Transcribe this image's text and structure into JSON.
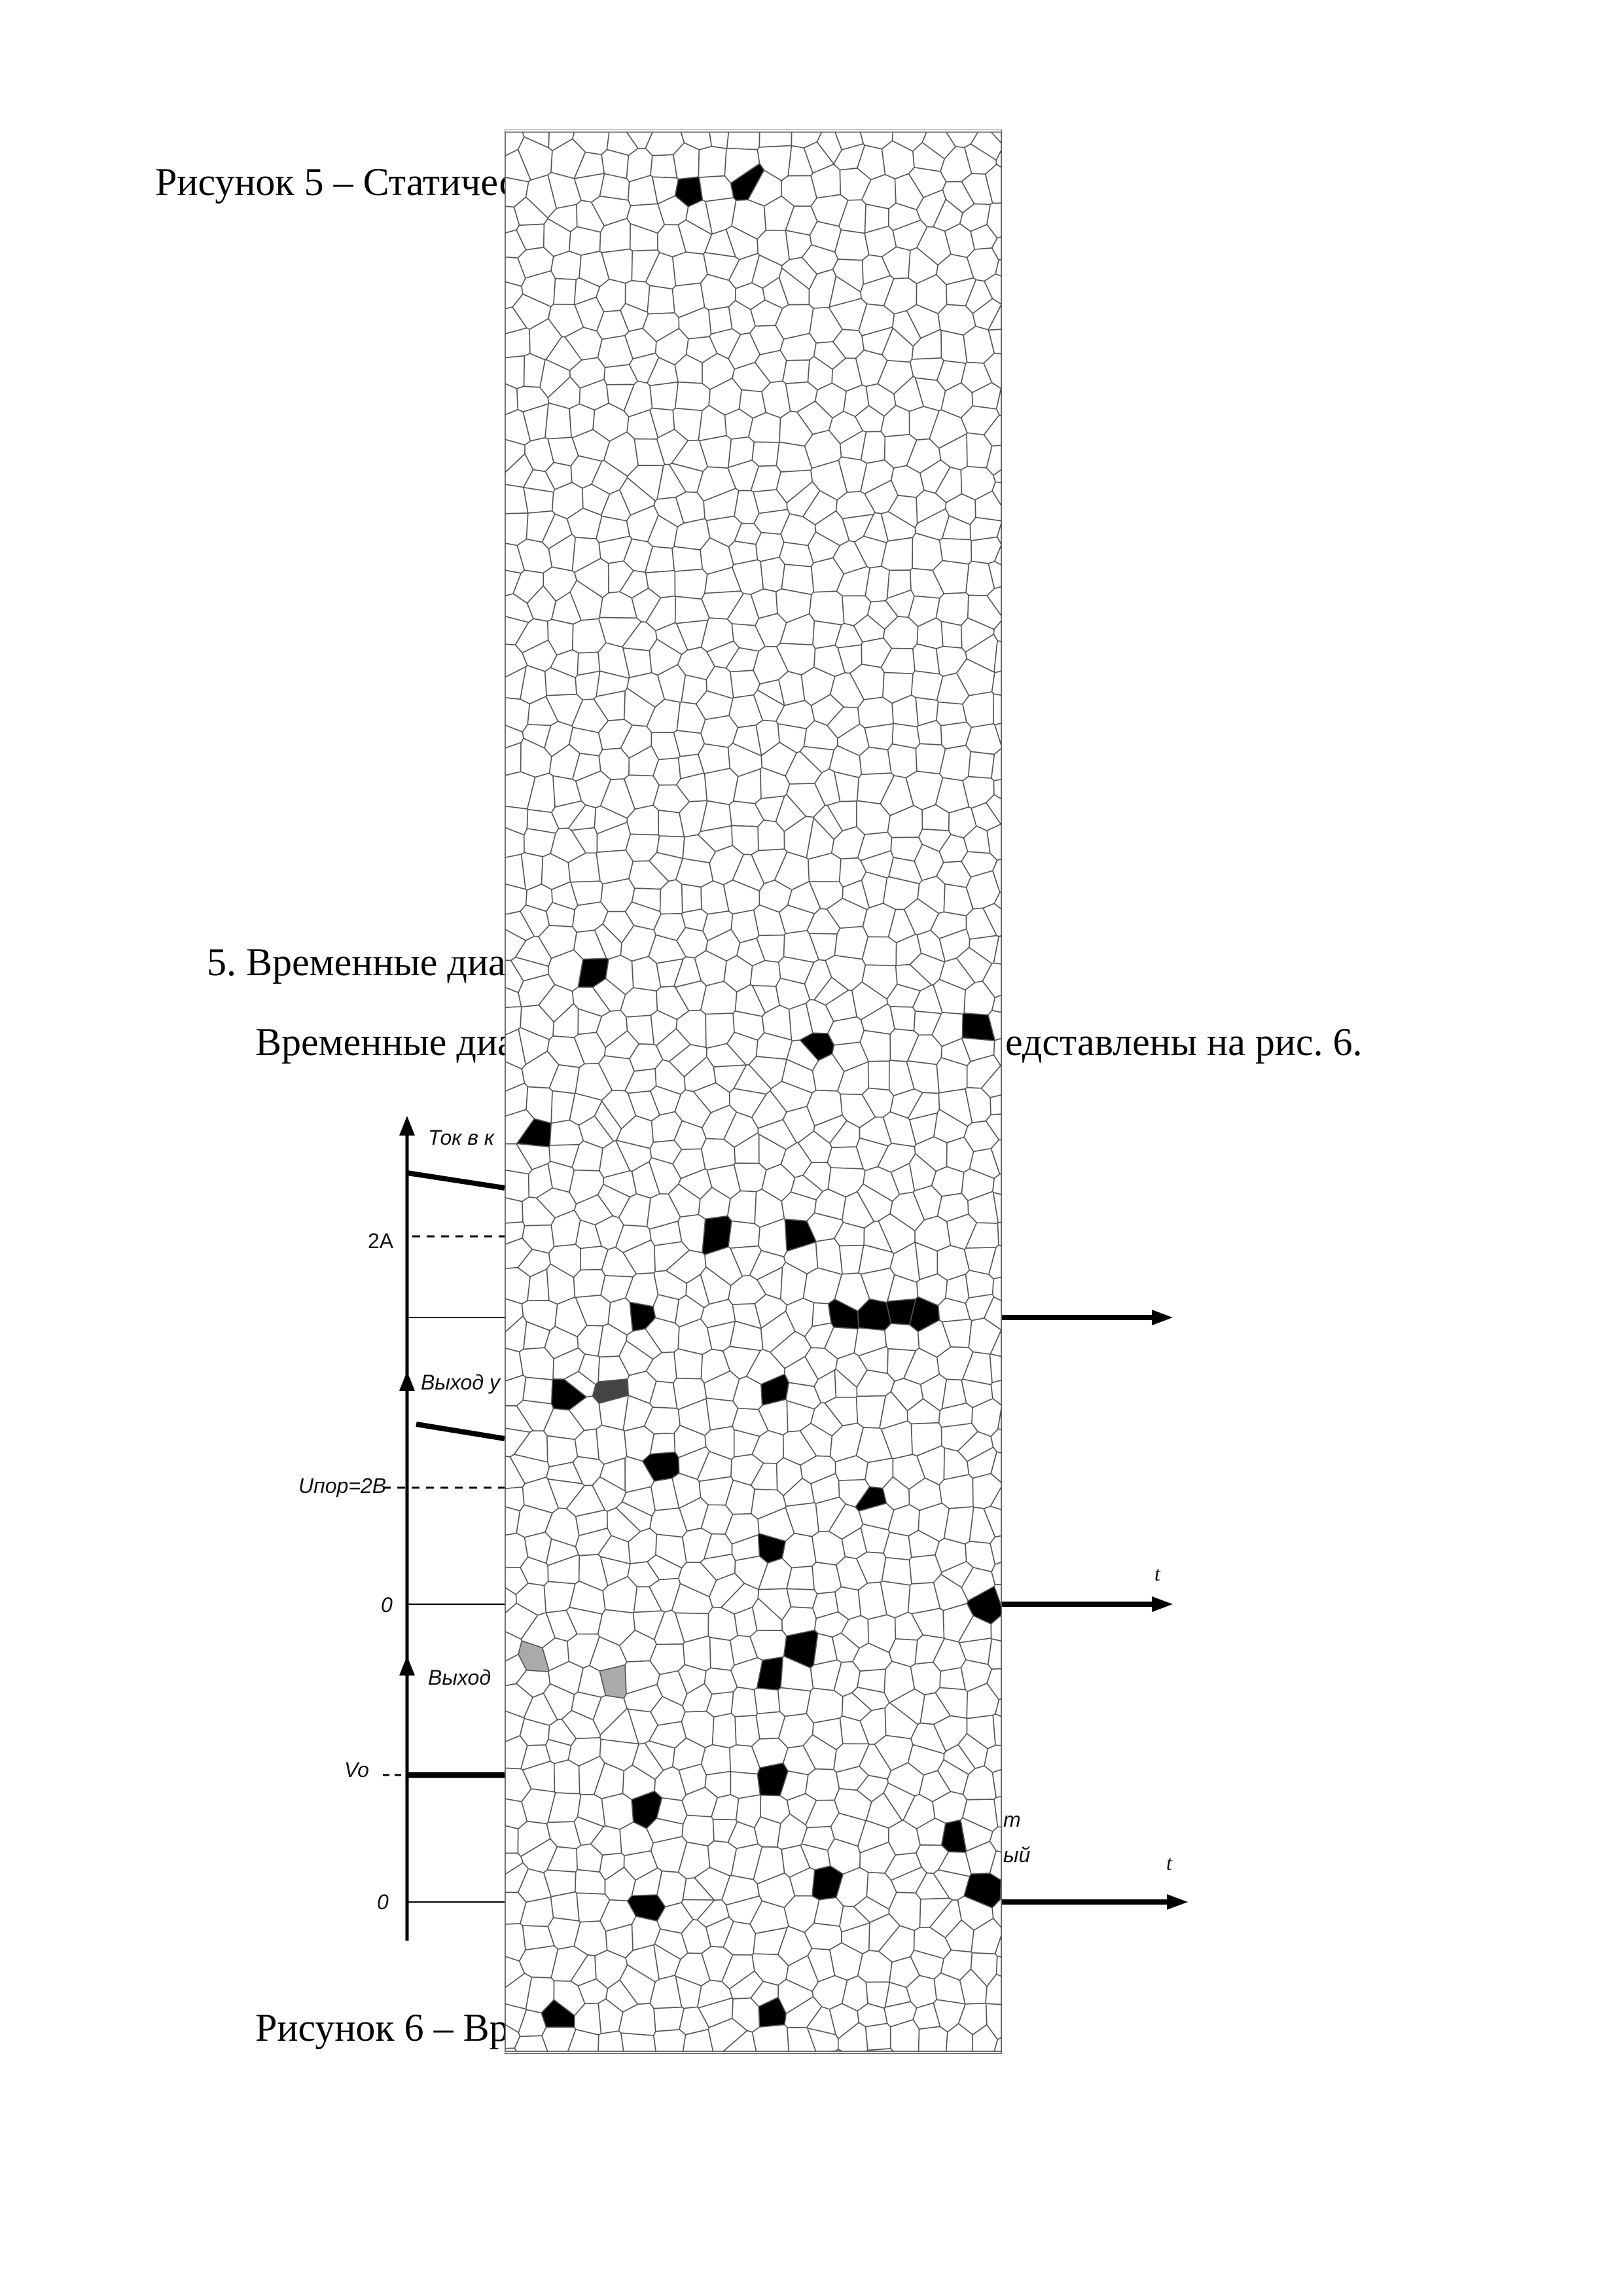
{
  "document": {
    "figure5_caption_fragment": "Рисунок 5 – Статичес",
    "section_heading_fragment": "5.  Временные диа",
    "paragraph_left_fragment": "Временные диа",
    "paragraph_right_fragment": "едставлены на рис. 6.",
    "figure6_caption_fragment": "Рисунок 6 – Вр"
  },
  "diagram": {
    "panel1_title": "Ток в к",
    "panel1_level": "2A",
    "panel2_title": "Выход у",
    "panel2_level": "Uпор=2В",
    "panel2_zero": "0",
    "panel2_time": "t",
    "panel3_title": "Выход",
    "panel3_level": "Vo",
    "panel3_zero": "0",
    "panel3_time": "t",
    "right_fragment_1": "т",
    "right_fragment_2": "ый"
  },
  "overlay": {
    "type": "voronoi-mosaic",
    "colors": {
      "line": "#555555",
      "dark": "#000000",
      "dark_gray": "#444444",
      "light_gray": "#aaaaaa"
    }
  }
}
